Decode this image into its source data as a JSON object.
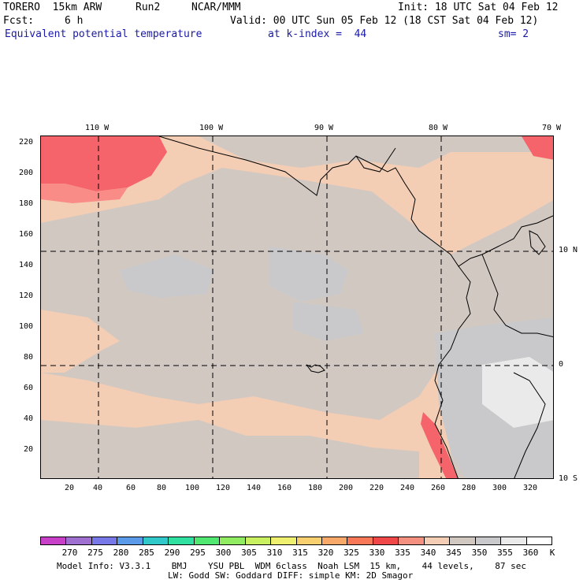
{
  "header": {
    "model": "TORERO  15km ARW",
    "run": "Run2",
    "org": "NCAR/MMM",
    "init": "Init: 18 UTC Sat 04 Feb 12",
    "fcst_label": "Fcst:",
    "fcst_value": "6 h",
    "valid": "Valid: 00 UTC Sun 05 Feb 12 (18 CST Sat 04 Feb 12)",
    "field": "Equivalent potential temperature",
    "level": "at k-index =  44",
    "smoothing": "sm= 2"
  },
  "map": {
    "top_longitudes": [
      "110 W",
      "100 W",
      "90 W",
      "80 W",
      "70 W"
    ],
    "right_latitudes": [
      "10 N",
      "0",
      "10 S"
    ],
    "y_ticks": [
      "220",
      "200",
      "180",
      "160",
      "140",
      "120",
      "100",
      "80",
      "60",
      "40",
      "20"
    ],
    "x_ticks": [
      "20",
      "40",
      "60",
      "80",
      "100",
      "120",
      "140",
      "160",
      "180",
      "200",
      "220",
      "240",
      "260",
      "280",
      "300",
      "320"
    ],
    "colors": {
      "ocean_base": "#d2c8c2",
      "warm_band": "#f3cdb4",
      "pale": "#c9c9cb",
      "light": "#eaeaea",
      "hot": "#f4646a",
      "hot2": "#fa8c87",
      "coast": "#000000",
      "grid": "#000000"
    }
  },
  "colorbar": {
    "labels": [
      "270",
      "275",
      "280",
      "285",
      "290",
      "295",
      "300",
      "305",
      "310",
      "315",
      "320",
      "325",
      "330",
      "335",
      "340",
      "345",
      "350",
      "355",
      "360"
    ],
    "unit": "K",
    "colors": [
      "#c840c8",
      "#a070d0",
      "#7878e8",
      "#5a9ae8",
      "#30c8c8",
      "#30e0a0",
      "#50e870",
      "#90ec60",
      "#c8f060",
      "#f0f070",
      "#f8d070",
      "#f8a868",
      "#f87858",
      "#f04848",
      "#f49080",
      "#f3cdb4",
      "#d2c8c2",
      "#c9c9cb",
      "#eaeaea",
      "#ffffff"
    ]
  },
  "footer": {
    "line1": "Model Info: V3.3.1    BMJ    YSU PBL  WDM 6class  Noah LSM  15 km,    44 levels,    87 sec",
    "line2": "LW: Godd SW: Goddard DIFF: simple KM: 2D Smagor"
  }
}
